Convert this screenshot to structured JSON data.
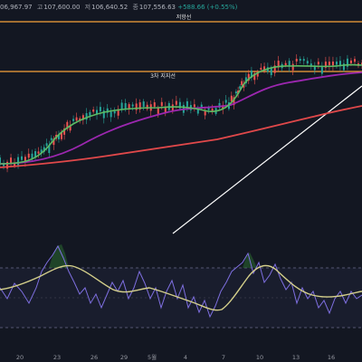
{
  "ohlc": {
    "open_text": "06,967.97",
    "high_label": "고",
    "high": "107,600.00",
    "low_label": "저",
    "low": "106,640.52",
    "close_label": "종",
    "close": "107,556.63",
    "change": "+588.66 (+0.55%)"
  },
  "levels": {
    "resistance_label": "저항선",
    "mid_label": "3차 지지선"
  },
  "x_axis": {
    "ticks": [
      "20",
      "23",
      "26",
      "29",
      "5월",
      "4",
      "7",
      "10",
      "13",
      "16"
    ]
  },
  "colors": {
    "background": "#131722",
    "up": "#26a69a",
    "down": "#ef5350",
    "level_line": "#f7a23b",
    "ma_short": "#5dbb63",
    "ma_mid": "#9c27b0",
    "ma_long": "#e0484a",
    "trendline": "#ffffff",
    "osc_main": "#d4cf8a",
    "osc_signal": "#7e6fe0"
  }
}
